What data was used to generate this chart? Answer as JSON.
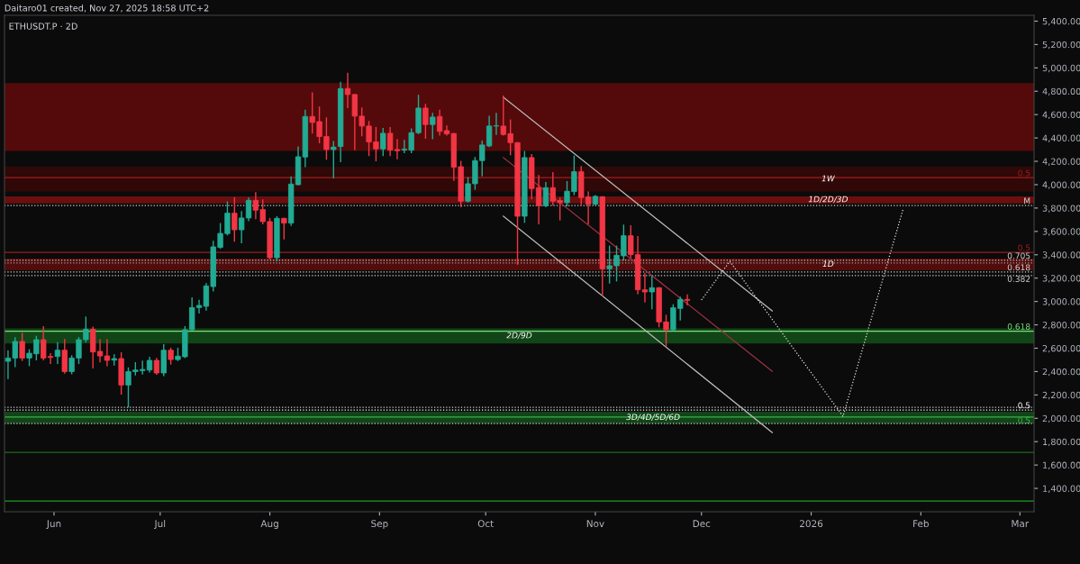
{
  "chart_data": {
    "type": "candlestick",
    "title": "ETHUSDT.P · 2D",
    "subtitle": "Daitaro01 created, Nov 27, 2025 18:58 UTC+2",
    "xlim": [
      "2025-05-18",
      "2026-03-05"
    ],
    "xticks": [
      {
        "value": "2025-06-01",
        "label": "Jun"
      },
      {
        "value": "2025-07-01",
        "label": "Jul"
      },
      {
        "value": "2025-08-01",
        "label": "Aug"
      },
      {
        "value": "2025-09-01",
        "label": "Sep"
      },
      {
        "value": "2025-10-01",
        "label": "Oct"
      },
      {
        "value": "2025-11-01",
        "label": "Nov"
      },
      {
        "value": "2025-12-01",
        "label": "Dec"
      },
      {
        "value": "2026-01-01",
        "label": "2026"
      },
      {
        "value": "2026-02-01",
        "label": "Feb"
      },
      {
        "value": "2026-03-01",
        "label": "Mar"
      }
    ],
    "ylim": [
      1200,
      5450
    ],
    "yticks": [
      {
        "value": 1400,
        "label": "1,400.00"
      },
      {
        "value": 1600,
        "label": "1,600.00"
      },
      {
        "value": 1800,
        "label": "1,800.00"
      },
      {
        "value": 2000,
        "label": "2,000.00"
      },
      {
        "value": 2200,
        "label": "2,200.00"
      },
      {
        "value": 2400,
        "label": "2,400.00"
      },
      {
        "value": 2600,
        "label": "2,600.00"
      },
      {
        "value": 2800,
        "label": "2,800.00"
      },
      {
        "value": 3000,
        "label": "3,000.00"
      },
      {
        "value": 3200,
        "label": "3,200.00"
      },
      {
        "value": 3400,
        "label": "3,400.00"
      },
      {
        "value": 3600,
        "label": "3,600.00"
      },
      {
        "value": 3800,
        "label": "3,800.00"
      },
      {
        "value": 4000,
        "label": "4,000.00"
      },
      {
        "value": 4200,
        "label": "4,200.00"
      },
      {
        "value": 4400,
        "label": "4,400.00"
      },
      {
        "value": 4600,
        "label": "4,600.00"
      },
      {
        "value": 4800,
        "label": "4,800.00"
      },
      {
        "value": 5000,
        "label": "5,000.00"
      },
      {
        "value": 5200,
        "label": "5,200.00"
      },
      {
        "value": 5400,
        "label": "5,400.00"
      }
    ],
    "bands": [
      {
        "axis": "y",
        "from": 4290,
        "to": 4870,
        "color": "#6e0b0b"
      },
      {
        "axis": "y",
        "from": 3940,
        "to": 4155,
        "label": "1W",
        "color": "#3d0808"
      },
      {
        "axis": "y",
        "from": 3840,
        "to": 3900,
        "label": "1D/2D/3D",
        "color": "#8b1010"
      },
      {
        "axis": "y",
        "from": 3267,
        "to": 3367,
        "label": "1D",
        "color": "#6a0e0e"
      },
      {
        "axis": "y",
        "from": 2640,
        "to": 2770,
        "label": "2D/9D",
        "color": "#145a1c"
      },
      {
        "axis": "y",
        "from": 1955,
        "to": 2056,
        "label": "3D/4D/5D/6D",
        "color": "#145a1c"
      }
    ],
    "ref_lines": [
      {
        "axis": "y",
        "value": 4060,
        "color": "#a01c1c",
        "line_style": "solid"
      },
      {
        "axis": "y",
        "value": 3822,
        "color": "#d0d0d0",
        "line_style": "dotted"
      },
      {
        "axis": "y",
        "value": 3421,
        "color": "#a01c1c",
        "line_style": "solid"
      },
      {
        "axis": "y",
        "value": 3352,
        "color": "#d0d0d0",
        "line_style": "dotted"
      },
      {
        "axis": "y",
        "value": 3329,
        "color": "#9e9e9e",
        "line_style": "dotted"
      },
      {
        "axis": "y",
        "value": 3252,
        "color": "#d0d0d0",
        "line_style": "dotted"
      },
      {
        "axis": "y",
        "value": 3221,
        "color": "#d0d0d0",
        "line_style": "dotted"
      },
      {
        "axis": "y",
        "value": 2745,
        "color": "#7be07b",
        "line_style": "solid"
      },
      {
        "axis": "y",
        "value": 2094,
        "color": "#d0d0d0",
        "line_style": "dotted"
      },
      {
        "axis": "y",
        "value": 2071,
        "color": "#ffffff",
        "line_style": "dotted"
      },
      {
        "axis": "y",
        "value": 2010,
        "color": "#3fae4f",
        "line_style": "solid"
      },
      {
        "axis": "y",
        "value": 1955,
        "color": "#d0d0d0",
        "line_style": "dotted"
      },
      {
        "axis": "y",
        "value": 1709,
        "color": "#1b6e20",
        "line_style": "solid"
      },
      {
        "axis": "y",
        "value": 1292,
        "color": "#1f9e26",
        "line_style": "solid"
      }
    ],
    "annotations": [
      {
        "text": "0.5",
        "x": "2026-03-04",
        "y": 4060
      },
      {
        "text": "M",
        "x": "2026-03-04",
        "y": 3822
      },
      {
        "text": "0.5",
        "x": "2026-03-04",
        "y": 3421
      },
      {
        "text": "0.705",
        "x": "2026-03-04",
        "y": 3352
      },
      {
        "text": "0.618",
        "x": "2026-03-04",
        "y": 3252
      },
      {
        "text": "0.382",
        "x": "2026-03-04",
        "y": 3221
      },
      {
        "text": "0.618",
        "x": "2026-03-04",
        "y": 2745
      },
      {
        "text": "0.5",
        "x": "2026-03-04",
        "y": 2071
      },
      {
        "text": "0.5",
        "x": "2026-03-04",
        "y": 2010
      }
    ],
    "series": [
      {
        "x": [
          "2025-05-19",
          "2025-05-21",
          "2025-05-23",
          "2025-05-25",
          "2025-05-27",
          "2025-05-29",
          "2025-05-31",
          "2025-06-02",
          "2025-06-04",
          "2025-06-06",
          "2025-06-08",
          "2025-06-10",
          "2025-06-12",
          "2025-06-14",
          "2025-06-16",
          "2025-06-18",
          "2025-06-20",
          "2025-06-22",
          "2025-06-24",
          "2025-06-26",
          "2025-06-28",
          "2025-06-30",
          "2025-07-02",
          "2025-07-04",
          "2025-07-06",
          "2025-07-08",
          "2025-07-10",
          "2025-07-12",
          "2025-07-14",
          "2025-07-16",
          "2025-07-18",
          "2025-07-20",
          "2025-07-22",
          "2025-07-24",
          "2025-07-26",
          "2025-07-28",
          "2025-07-30",
          "2025-08-01",
          "2025-08-03",
          "2025-08-05",
          "2025-08-07",
          "2025-08-09",
          "2025-08-11",
          "2025-08-13",
          "2025-08-15",
          "2025-08-17",
          "2025-08-19",
          "2025-08-21",
          "2025-08-23",
          "2025-08-25",
          "2025-08-27",
          "2025-08-29",
          "2025-08-31",
          "2025-09-02",
          "2025-09-04",
          "2025-09-06",
          "2025-09-08",
          "2025-09-10",
          "2025-09-12",
          "2025-09-14",
          "2025-09-16",
          "2025-09-18",
          "2025-09-20",
          "2025-09-22",
          "2025-09-24",
          "2025-09-26",
          "2025-09-28",
          "2025-09-30",
          "2025-10-02",
          "2025-10-04",
          "2025-10-06",
          "2025-10-08",
          "2025-10-10",
          "2025-10-12",
          "2025-10-14",
          "2025-10-16",
          "2025-10-18",
          "2025-10-20",
          "2025-10-22",
          "2025-10-24",
          "2025-10-26",
          "2025-10-28",
          "2025-10-30",
          "2025-11-01",
          "2025-11-03",
          "2025-11-05",
          "2025-11-07",
          "2025-11-09",
          "2025-11-11",
          "2025-11-13",
          "2025-11-15",
          "2025-11-17",
          "2025-11-19",
          "2025-11-21",
          "2025-11-23",
          "2025-11-25",
          "2025-11-27"
        ],
        "ohlc": [
          [
            2488,
            2578,
            2341,
            2516
          ],
          [
            2516,
            2689,
            2444,
            2658
          ],
          [
            2658,
            2727,
            2496,
            2516
          ],
          [
            2516,
            2586,
            2452,
            2557
          ],
          [
            2552,
            2701,
            2501,
            2673
          ],
          [
            2673,
            2784,
            2501,
            2516
          ],
          [
            2529,
            2552,
            2470,
            2521
          ],
          [
            2529,
            2647,
            2470,
            2583
          ],
          [
            2583,
            2673,
            2388,
            2400
          ],
          [
            2400,
            2534,
            2382,
            2516
          ],
          [
            2516,
            2689,
            2470,
            2673
          ],
          [
            2673,
            2866,
            2655,
            2763
          ],
          [
            2763,
            2779,
            2431,
            2568
          ],
          [
            2573,
            2671,
            2483,
            2534
          ],
          [
            2534,
            2671,
            2452,
            2496
          ],
          [
            2498,
            2542,
            2457,
            2511
          ],
          [
            2511,
            2560,
            2208,
            2285
          ],
          [
            2285,
            2431,
            2097,
            2400
          ],
          [
            2400,
            2475,
            2372,
            2413
          ],
          [
            2408,
            2488,
            2380,
            2418
          ],
          [
            2413,
            2521,
            2398,
            2496
          ],
          [
            2496,
            2511,
            2377,
            2388
          ],
          [
            2388,
            2629,
            2367,
            2583
          ],
          [
            2583,
            2599,
            2465,
            2503
          ],
          [
            2503,
            2599,
            2496,
            2532
          ],
          [
            2527,
            2784,
            2521,
            2758
          ],
          [
            2758,
            3031,
            2753,
            2948
          ],
          [
            2948,
            3010,
            2902,
            2966
          ],
          [
            2959,
            3151,
            2928,
            3133
          ],
          [
            3128,
            3514,
            3092,
            3468
          ],
          [
            3463,
            3666,
            3457,
            3583
          ],
          [
            3581,
            3851,
            3571,
            3756
          ],
          [
            3756,
            3887,
            3517,
            3614
          ],
          [
            3614,
            3769,
            3504,
            3715
          ],
          [
            3715,
            3884,
            3692,
            3866
          ],
          [
            3866,
            3931,
            3710,
            3782
          ],
          [
            3787,
            3869,
            3666,
            3684
          ],
          [
            3684,
            3710,
            3365,
            3375
          ],
          [
            3375,
            3725,
            3349,
            3712
          ],
          [
            3712,
            3712,
            3537,
            3671
          ],
          [
            3671,
            4065,
            3653,
            4005
          ],
          [
            4000,
            4322,
            4000,
            4239
          ],
          [
            4237,
            4636,
            4155,
            4584
          ],
          [
            4584,
            4785,
            4443,
            4533
          ],
          [
            4540,
            4664,
            4360,
            4412
          ],
          [
            4412,
            4571,
            4219,
            4301
          ],
          [
            4301,
            4368,
            4059,
            4322
          ],
          [
            4327,
            4875,
            4198,
            4823
          ],
          [
            4823,
            4952,
            4661,
            4772
          ],
          [
            4772,
            4772,
            4301,
            4587
          ],
          [
            4587,
            4656,
            4420,
            4502
          ],
          [
            4502,
            4540,
            4250,
            4366
          ],
          [
            4366,
            4489,
            4206,
            4306
          ],
          [
            4306,
            4481,
            4250,
            4440
          ],
          [
            4440,
            4489,
            4250,
            4296
          ],
          [
            4301,
            4386,
            4224,
            4291
          ],
          [
            4296,
            4378,
            4275,
            4304
          ],
          [
            4296,
            4476,
            4275,
            4445
          ],
          [
            4445,
            4764,
            4438,
            4656
          ],
          [
            4656,
            4687,
            4399,
            4515
          ],
          [
            4515,
            4610,
            4394,
            4579
          ],
          [
            4584,
            4636,
            4425,
            4456
          ],
          [
            4463,
            4502,
            4425,
            4435
          ],
          [
            4438,
            4438,
            4039,
            4149
          ],
          [
            4154,
            4198,
            3812,
            3859
          ],
          [
            3859,
            4059,
            3854,
            4008
          ],
          [
            4008,
            4232,
            3962,
            4206
          ],
          [
            4206,
            4373,
            4077,
            4340
          ],
          [
            4332,
            4584,
            4327,
            4502
          ],
          [
            4502,
            4610,
            4432,
            4504
          ],
          [
            4502,
            4759,
            4425,
            4430
          ],
          [
            4437,
            4553,
            4257,
            4360
          ],
          [
            4360,
            4360,
            3319,
            3730
          ],
          [
            3730,
            4283,
            3679,
            4232
          ],
          [
            4232,
            4257,
            3879,
            3967
          ],
          [
            3974,
            4077,
            3666,
            3820
          ],
          [
            3820,
            4018,
            3812,
            3974
          ],
          [
            3974,
            4103,
            3828,
            3859
          ],
          [
            3864,
            3885,
            3699,
            3846
          ],
          [
            3846,
            4026,
            3820,
            3944
          ],
          [
            3941,
            4244,
            3915,
            4111
          ],
          [
            4111,
            4155,
            3828,
            3890
          ],
          [
            3895,
            3936,
            3666,
            3833
          ],
          [
            3833,
            3905,
            3828,
            3900
          ],
          [
            3897,
            3897,
            3049,
            3280
          ],
          [
            3280,
            3473,
            3159,
            3306
          ],
          [
            3306,
            3473,
            3177,
            3396
          ],
          [
            3391,
            3653,
            3357,
            3563
          ],
          [
            3563,
            3648,
            3375,
            3401
          ],
          [
            3401,
            3555,
            3067,
            3100
          ],
          [
            3100,
            3241,
            2997,
            3082
          ],
          [
            3082,
            3216,
            2938,
            3118
          ],
          [
            3118,
            3118,
            2784,
            2825
          ],
          [
            2825,
            2881,
            2619,
            2758
          ],
          [
            2758,
            2971,
            2753,
            2946
          ],
          [
            2941,
            3036,
            2843,
            3018
          ],
          [
            3018,
            3056,
            2971,
            3010
          ]
        ],
        "colors": [
          "#22ab94",
          "#22ab94",
          "#f23645",
          "#22ab94",
          "#22ab94",
          "#f23645",
          "#f23645",
          "#22ab94",
          "#f23645",
          "#22ab94",
          "#22ab94",
          "#22ab94",
          "#f23645",
          "#f23645",
          "#f23645",
          "#22ab94",
          "#f23645",
          "#22ab94",
          "#22ab94",
          "#22ab94",
          "#22ab94",
          "#f23645",
          "#22ab94",
          "#f23645",
          "#22ab94",
          "#22ab94",
          "#22ab94",
          "#22ab94",
          "#22ab94",
          "#22ab94",
          "#22ab94",
          "#22ab94",
          "#f23645",
          "#22ab94",
          "#22ab94",
          "#f23645",
          "#f23645",
          "#f23645",
          "#22ab94",
          "#f23645",
          "#22ab94",
          "#22ab94",
          "#22ab94",
          "#f23645",
          "#f23645",
          "#f23645",
          "#22ab94",
          "#22ab94",
          "#f23645",
          "#f23645",
          "#f23645",
          "#f23645",
          "#f23645",
          "#22ab94",
          "#f23645",
          "#f23645",
          "#22ab94",
          "#22ab94",
          "#22ab94",
          "#f23645",
          "#22ab94",
          "#f23645",
          "#f23645",
          "#f23645",
          "#f23645",
          "#22ab94",
          "#22ab94",
          "#22ab94",
          "#22ab94",
          "#22ab94",
          "#f23645",
          "#f23645",
          "#f23645",
          "#22ab94",
          "#f23645",
          "#f23645",
          "#22ab94",
          "#f23645",
          "#f23645",
          "#22ab94",
          "#22ab94",
          "#f23645",
          "#f23645",
          "#22ab94",
          "#f23645",
          "#22ab94",
          "#22ab94",
          "#22ab94",
          "#f23645",
          "#f23645",
          "#f23645",
          "#22ab94",
          "#f23645",
          "#f23645",
          "#22ab94",
          "#22ab94",
          "#f23645"
        ]
      },
      {
        "type": "line",
        "x": [
          "2025-10-06",
          "2025-12-21"
        ],
        "values": [
          4749,
          2920
        ],
        "color": "#bdbdbd",
        "line_style": "solid"
      },
      {
        "type": "line",
        "x": [
          "2025-10-06",
          "2025-12-21"
        ],
        "values": [
          4232,
          2403
        ],
        "color": "#a03040",
        "line_style": "solid"
      },
      {
        "type": "line",
        "x": [
          "2025-10-06",
          "2025-12-21"
        ],
        "values": [
          3730,
          1878
        ],
        "color": "#bdbdbd",
        "line_style": "solid"
      },
      {
        "type": "line",
        "x": [
          "2025-12-01",
          "2025-12-09",
          "2026-01-10",
          "2026-01-27"
        ],
        "values": [
          3013,
          3344,
          2017,
          3792
        ],
        "color": "#e0e0e0",
        "line_style": "dotted"
      }
    ]
  }
}
